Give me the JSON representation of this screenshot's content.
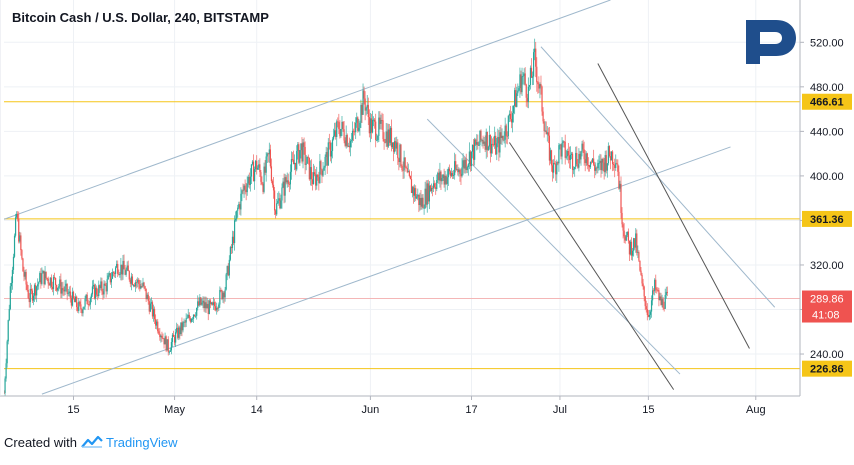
{
  "chart_data": {
    "type": "candlestick",
    "title": "Bitcoin Cash / U.S. Dollar, 240, BITSTAMP",
    "x_axis": {
      "tick_labels": [
        "15",
        "May",
        "14",
        "Jun",
        "17",
        "Jul",
        "15",
        "Aug"
      ],
      "tick_dates": [
        "2019-04-15",
        "2019-05-01",
        "2019-05-14",
        "2019-06-01",
        "2019-06-17",
        "2019-07-01",
        "2019-07-15",
        "2019-08-01"
      ],
      "range": [
        "2019-04-04",
        "2019-08-08"
      ]
    },
    "y_axis": {
      "tick_labels": [
        "240.00",
        "280.00",
        "320.00",
        "360.00",
        "400.00",
        "440.00",
        "480.00",
        "520.00"
      ],
      "ticks": [
        240,
        280,
        320,
        360,
        400,
        440,
        480,
        520
      ],
      "range": [
        202.3,
        558
      ]
    },
    "grid": true,
    "horizontal_levels": [
      {
        "label": "466.61",
        "value": 466.61,
        "color": "#f5c518"
      },
      {
        "label": "361.36",
        "value": 361.36,
        "color": "#f5c518"
      },
      {
        "label": "226.86",
        "value": 226.86,
        "color": "#f5c518"
      }
    ],
    "last_price": {
      "label": "289.86",
      "value": 289.86,
      "countdown": "41:08",
      "color": "#ef5350"
    },
    "trendlines": [
      {
        "color": "#9fb8cc",
        "points": [
          [
            "2019-04-04",
            361
          ],
          [
            "2019-07-09",
            558
          ]
        ]
      },
      {
        "color": "#9fb8cc",
        "points": [
          [
            "2019-04-10",
            204
          ],
          [
            "2019-07-28",
            426
          ]
        ]
      },
      {
        "color": "#9fb8cc",
        "points": [
          [
            "2019-06-10",
            451
          ],
          [
            "2019-07-20",
            222
          ]
        ]
      },
      {
        "color": "#9fb8cc",
        "points": [
          [
            "2019-06-28",
            516
          ],
          [
            "2019-08-04",
            282
          ]
        ]
      },
      {
        "color": "#555555",
        "points": [
          [
            "2019-06-23",
            430
          ],
          [
            "2019-07-19",
            208
          ]
        ]
      },
      {
        "color": "#555555",
        "points": [
          [
            "2019-07-07",
            501
          ],
          [
            "2019-07-31",
            245
          ]
        ]
      }
    ],
    "price_path": [
      [
        "2019-04-04",
        205
      ],
      [
        "2019-04-05",
        300
      ],
      [
        "2019-04-06",
        365
      ],
      [
        "2019-04-07",
        315
      ],
      [
        "2019-04-08",
        290
      ],
      [
        "2019-04-10",
        310
      ],
      [
        "2019-04-12",
        305
      ],
      [
        "2019-04-14",
        295
      ],
      [
        "2019-04-16",
        280
      ],
      [
        "2019-04-18",
        295
      ],
      [
        "2019-04-20",
        300
      ],
      [
        "2019-04-22",
        320
      ],
      [
        "2019-04-24",
        310
      ],
      [
        "2019-04-26",
        300
      ],
      [
        "2019-04-28",
        270
      ],
      [
        "2019-04-30",
        245
      ],
      [
        "2019-05-01",
        255
      ],
      [
        "2019-05-03",
        270
      ],
      [
        "2019-05-05",
        285
      ],
      [
        "2019-05-07",
        280
      ],
      [
        "2019-05-09",
        300
      ],
      [
        "2019-05-11",
        370
      ],
      [
        "2019-05-12",
        390
      ],
      [
        "2019-05-14",
        410
      ],
      [
        "2019-05-15",
        395
      ],
      [
        "2019-05-16",
        420
      ],
      [
        "2019-05-17",
        370
      ],
      [
        "2019-05-19",
        400
      ],
      [
        "2019-05-21",
        425
      ],
      [
        "2019-05-23",
        395
      ],
      [
        "2019-05-25",
        415
      ],
      [
        "2019-05-27",
        445
      ],
      [
        "2019-05-29",
        430
      ],
      [
        "2019-05-31",
        470
      ],
      [
        "2019-06-01",
        445
      ],
      [
        "2019-06-03",
        440
      ],
      [
        "2019-06-05",
        430
      ],
      [
        "2019-06-07",
        395
      ],
      [
        "2019-06-09",
        375
      ],
      [
        "2019-06-11",
        395
      ],
      [
        "2019-06-13",
        400
      ],
      [
        "2019-06-15",
        405
      ],
      [
        "2019-06-17",
        420
      ],
      [
        "2019-06-19",
        435
      ],
      [
        "2019-06-21",
        425
      ],
      [
        "2019-06-23",
        450
      ],
      [
        "2019-06-25",
        490
      ],
      [
        "2019-06-26",
        475
      ],
      [
        "2019-06-27",
        505
      ],
      [
        "2019-06-28",
        470
      ],
      [
        "2019-06-29",
        430
      ],
      [
        "2019-06-30",
        405
      ],
      [
        "2019-07-01",
        425
      ],
      [
        "2019-07-03",
        415
      ],
      [
        "2019-07-05",
        420
      ],
      [
        "2019-07-07",
        405
      ],
      [
        "2019-07-09",
        420
      ],
      [
        "2019-07-10",
        415
      ],
      [
        "2019-07-11",
        355
      ],
      [
        "2019-07-12",
        335
      ],
      [
        "2019-07-13",
        340
      ],
      [
        "2019-07-14",
        300
      ],
      [
        "2019-07-15",
        275
      ],
      [
        "2019-07-16",
        300
      ],
      [
        "2019-07-17",
        285
      ],
      [
        "2019-07-18",
        290
      ]
    ]
  },
  "footer": {
    "created_with": "Created with",
    "brand": "TradingView"
  }
}
